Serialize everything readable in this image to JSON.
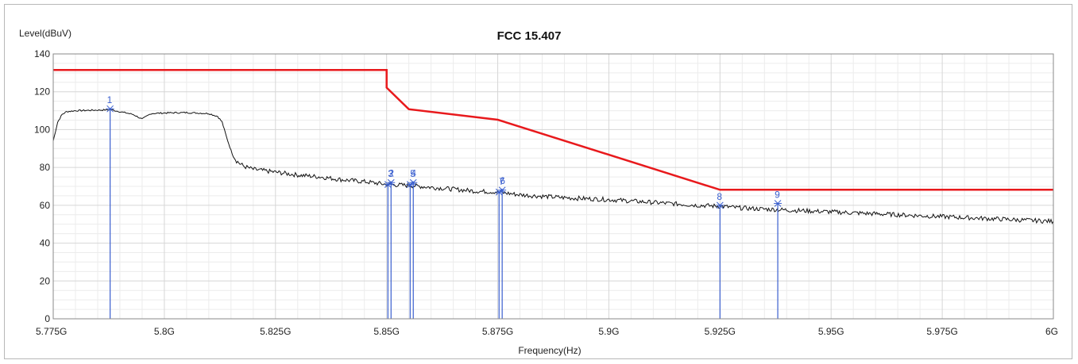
{
  "chart_data": {
    "type": "line",
    "title": "FCC 15.407",
    "xlabel": "Frequency(Hz)",
    "ylabel": "Level(dBuV)",
    "xlim": [
      5.775,
      6.0
    ],
    "ylim": [
      0,
      140
    ],
    "x_unit": "GHz",
    "x_ticks": [
      {
        "value": 5.775,
        "label": "5.775G"
      },
      {
        "value": 5.8,
        "label": "5.8G"
      },
      {
        "value": 5.825,
        "label": "5.825G"
      },
      {
        "value": 5.85,
        "label": "5.85G"
      },
      {
        "value": 5.875,
        "label": "5.875G"
      },
      {
        "value": 5.9,
        "label": "5.9G"
      },
      {
        "value": 5.925,
        "label": "5.925G"
      },
      {
        "value": 5.95,
        "label": "5.95G"
      },
      {
        "value": 5.975,
        "label": "5.975G"
      },
      {
        "value": 6.0,
        "label": "6G"
      }
    ],
    "y_ticks": [
      0,
      20,
      40,
      60,
      80,
      100,
      120,
      140
    ],
    "grid": true,
    "minor_grid": true,
    "series": [
      {
        "role": "limit",
        "color": "#e8191c",
        "x": [
          5.775,
          5.85,
          5.85,
          5.855,
          5.875,
          5.925,
          6.0
        ],
        "y": [
          131.5,
          131.5,
          122.2,
          110.8,
          105.2,
          68.2,
          68.2
        ]
      },
      {
        "role": "measurement",
        "color": "#111111",
        "x": [
          5.775,
          5.776,
          5.777,
          5.778,
          5.78,
          5.785,
          5.788,
          5.79,
          5.793,
          5.795,
          5.797,
          5.8,
          5.805,
          5.81,
          5.812,
          5.813,
          5.814,
          5.815,
          5.8155,
          5.816,
          5.817,
          5.818,
          5.82,
          5.825,
          5.83,
          5.835,
          5.84,
          5.845,
          5.85,
          5.855,
          5.86,
          5.865,
          5.87,
          5.875,
          5.88,
          5.89,
          5.9,
          5.91,
          5.92,
          5.925,
          5.93,
          5.94,
          5.95,
          5.96,
          5.97,
          5.98,
          5.99,
          6.0
        ],
        "y": [
          94,
          104,
          108,
          109.5,
          110,
          110.3,
          110.5,
          109.5,
          108,
          105.5,
          108.5,
          108.8,
          109,
          108.5,
          107,
          104,
          96,
          89,
          86,
          84,
          82,
          80.5,
          79,
          77.5,
          76,
          75,
          73.5,
          72.5,
          71,
          70.5,
          69.5,
          68.5,
          67.5,
          67,
          65.5,
          64,
          63,
          61.5,
          60,
          59.5,
          58.5,
          57.5,
          56.5,
          55.5,
          54.5,
          53.5,
          52.5,
          51.5
        ]
      }
    ],
    "markers": [
      {
        "label": "1",
        "x": 5.7878,
        "y": 111
      },
      {
        "label": "2",
        "x": 5.8503,
        "y": 71
      },
      {
        "label": "3",
        "x": 5.851,
        "y": 72
      },
      {
        "label": "4",
        "x": 5.8553,
        "y": 71
      },
      {
        "label": "5",
        "x": 5.856,
        "y": 72
      },
      {
        "label": "6",
        "x": 5.8753,
        "y": 67
      },
      {
        "label": "7",
        "x": 5.876,
        "y": 68
      },
      {
        "label": "8",
        "x": 5.925,
        "y": 60
      },
      {
        "label": "9",
        "x": 5.938,
        "y": 61
      }
    ],
    "marker_color": "#3a5fcf"
  }
}
